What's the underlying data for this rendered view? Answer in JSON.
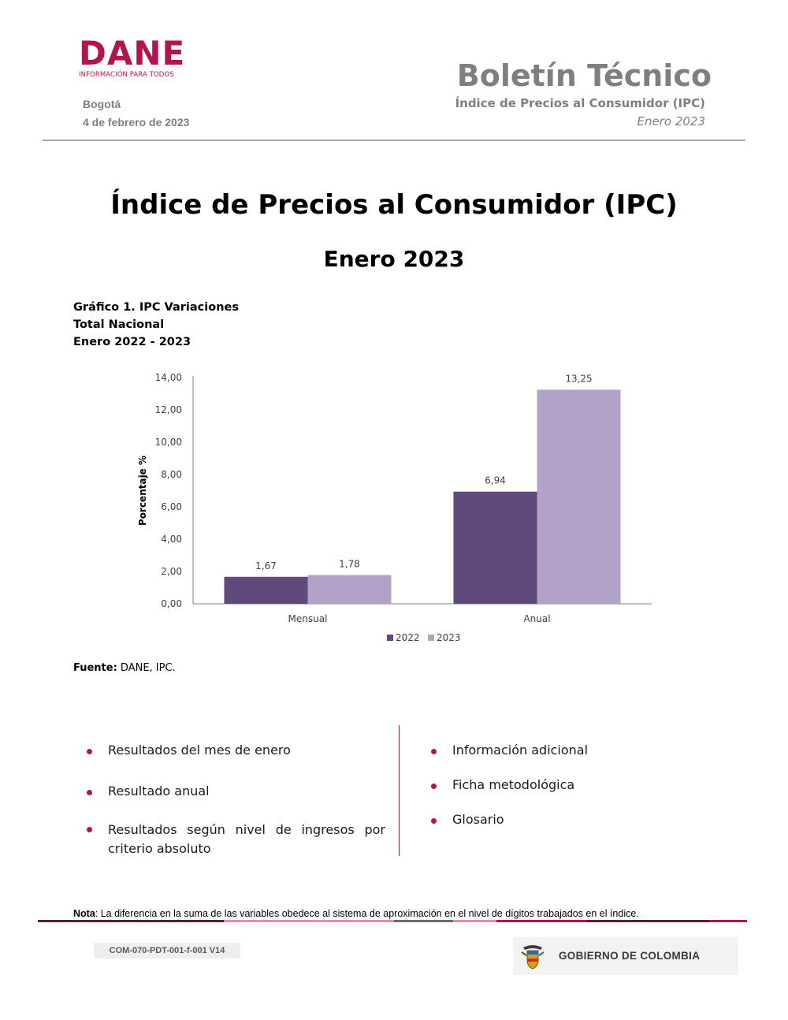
{
  "header": {
    "logo_word": "DANE",
    "logo_tagline": "INFORMACIÓN PARA TODOS",
    "city": "Bogotá",
    "date": "4 de febrero de 2023",
    "bulletin_title": "Boletín Técnico",
    "bulletin_subtitle": "Índice de Precios al Consumidor (IPC)",
    "bulletin_period": "Enero 2023"
  },
  "document": {
    "title": "Índice de Precios al Consumidor (IPC)",
    "period": "Enero 2023"
  },
  "chart_caption": {
    "line1": "Gráfico 1. IPC Variaciones",
    "line2": "Total Nacional",
    "line3": "Enero 2022 - 2023"
  },
  "chart_data": {
    "type": "bar",
    "categories": [
      "Mensual",
      "Anual"
    ],
    "series": [
      {
        "name": "2022",
        "values": [
          1.67,
          6.94
        ],
        "labels": [
          "1,67",
          "6,94"
        ],
        "color": "#604a7b"
      },
      {
        "name": "2023",
        "values": [
          1.78,
          13.25
        ],
        "labels": [
          "1,78",
          "13,25"
        ],
        "color": "#b3a2c7"
      }
    ],
    "ylabel": "Porcentaje %",
    "ylim": [
      0,
      14
    ],
    "yticks": [
      0,
      2,
      4,
      6,
      8,
      10,
      12,
      14
    ],
    "ytick_labels": [
      "0,00",
      "2,00",
      "4,00",
      "6,00",
      "8,00",
      "10,00",
      "12,00",
      "14,00"
    ],
    "legend_position": "bottom",
    "grid": false
  },
  "source": {
    "label": "Fuente:",
    "text": " DANE, IPC."
  },
  "left_list": [
    "Resultados del mes de enero",
    "Resultado anual",
    "Resultados según nivel de ingresos por criterio absoluto"
  ],
  "right_list": [
    "Información adicional",
    "Ficha metodológica",
    "Glosario"
  ],
  "note": {
    "label": "Nota",
    "text": ": La diferencia en la suma de las variables obedece al sistema de aproximación en el nivel de dígitos trabajados en el índice."
  },
  "footer": {
    "code": "COM-070-PDT-001-f-001 V14",
    "government": "GOBIERNO DE COLOMBIA"
  },
  "colors": {
    "brand": "#b0154f",
    "text_gray": "#7f7f7f",
    "series_2022": "#604a7b",
    "series_2023": "#b3a2c7"
  }
}
